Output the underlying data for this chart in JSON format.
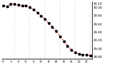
{
  "hours": [
    0,
    1,
    2,
    3,
    4,
    5,
    6,
    7,
    8,
    9,
    10,
    11,
    12,
    13,
    14,
    15,
    16,
    17,
    18,
    19,
    20,
    21,
    22,
    23
  ],
  "pressure": [
    30.05,
    30.03,
    30.08,
    30.09,
    30.06,
    30.04,
    30.05,
    30.0,
    29.95,
    29.88,
    29.8,
    29.72,
    29.62,
    29.52,
    29.42,
    29.3,
    29.18,
    29.06,
    28.97,
    28.9,
    28.87,
    28.85,
    28.84,
    28.83
  ],
  "line_color": "#cc0000",
  "dot_color": "#000000",
  "bg_color": "#ffffff",
  "grid_color": "#999999",
  "ylim_min": 28.75,
  "ylim_max": 30.15,
  "ytick_values": [
    28.8,
    29.0,
    29.2,
    29.4,
    29.6,
    29.8,
    30.0,
    30.1
  ],
  "vline_positions": [
    3,
    7,
    11,
    15,
    19,
    23
  ],
  "ylabel_fontsize": 2.8,
  "xlabel_fontsize": 2.5,
  "dot_size": 2.5,
  "line_width": 0.5
}
